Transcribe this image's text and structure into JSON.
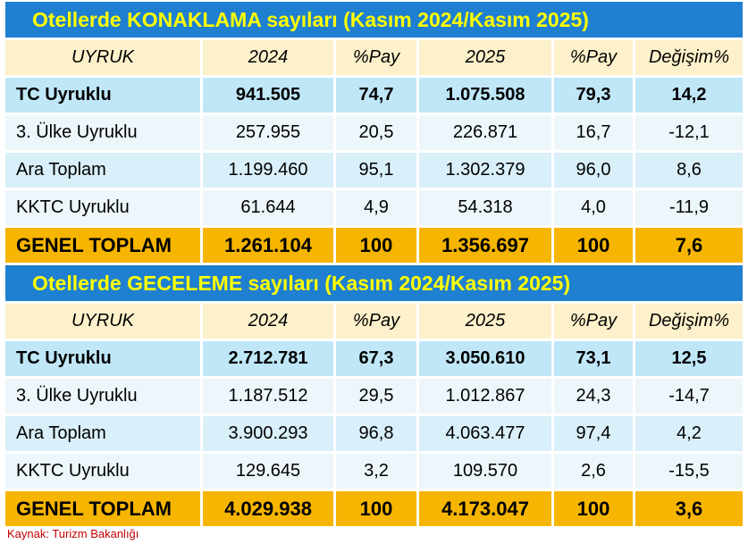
{
  "tables": [
    {
      "title": "Otellerde KONAKLAMA sayıları (Kasım 2024/Kasım 2025)",
      "headers": [
        "UYRUK",
        "2024",
        "%Pay",
        "2025",
        "%Pay",
        "Değişim%"
      ],
      "rows": [
        [
          "TC Uyruklu",
          "941.505",
          "74,7",
          "1.075.508",
          "79,3",
          "14,2"
        ],
        [
          "3. Ülke Uyruklu",
          "257.955",
          "20,5",
          "226.871",
          "16,7",
          "-12,1"
        ],
        [
          "Ara Toplam",
          "1.199.460",
          "95,1",
          "1.302.379",
          "96,0",
          "8,6"
        ],
        [
          "KKTC Uyruklu",
          "61.644",
          "4,9",
          "54.318",
          "4,0",
          "-11,9"
        ],
        [
          "GENEL TOPLAM",
          "1.261.104",
          "100",
          "1.356.697",
          "100",
          "7,6"
        ]
      ]
    },
    {
      "title": "Otellerde GECELEME sayıları (Kasım 2024/Kasım 2025)",
      "headers": [
        "UYRUK",
        "2024",
        "%Pay",
        "2025",
        "%Pay",
        "Değişim%"
      ],
      "rows": [
        [
          "TC Uyruklu",
          "2.712.781",
          "67,3",
          "3.050.610",
          "73,1",
          "12,5"
        ],
        [
          "3. Ülke Uyruklu",
          "1.187.512",
          "29,5",
          "1.012.867",
          "24,3",
          "-14,7"
        ],
        [
          "Ara Toplam",
          "3.900.293",
          "96,8",
          "4.063.477",
          "97,4",
          "4,2"
        ],
        [
          "KKTC Uyruklu",
          "129.645",
          "3,2",
          "109.570",
          "2,6",
          "-15,5"
        ],
        [
          "GENEL TOPLAM",
          "4.029.938",
          "100",
          "4.173.047",
          "100",
          "3,6"
        ]
      ]
    }
  ],
  "source": "Kaynak: Turizm Bakanlığı"
}
